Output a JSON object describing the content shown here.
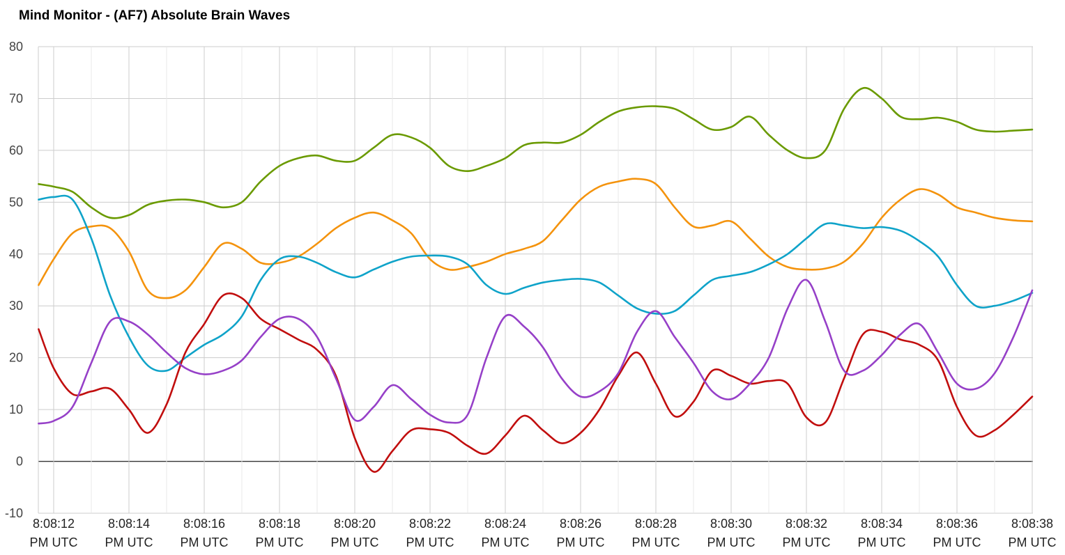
{
  "chart_data": {
    "type": "line",
    "title": "Mind Monitor - (AF7) Absolute Brain Waves",
    "xlabel": "",
    "ylabel": "",
    "ylim": [
      -10,
      80
    ],
    "y_ticks": [
      "80",
      "70",
      "60",
      "50",
      "40",
      "30",
      "20",
      "10",
      "0",
      "-10"
    ],
    "y_tick_values": [
      80,
      70,
      60,
      50,
      40,
      30,
      20,
      10,
      0,
      -10
    ],
    "x_ticks": [
      {
        "time": "8:08:12",
        "suffix": "PM UTC"
      },
      {
        "time": "8:08:14",
        "suffix": "PM UTC"
      },
      {
        "time": "8:08:16",
        "suffix": "PM UTC"
      },
      {
        "time": "8:08:18",
        "suffix": "PM UTC"
      },
      {
        "time": "8:08:20",
        "suffix": "PM UTC"
      },
      {
        "time": "8:08:22",
        "suffix": "PM UTC"
      },
      {
        "time": "8:08:24",
        "suffix": "PM UTC"
      },
      {
        "time": "8:08:26",
        "suffix": "PM UTC"
      },
      {
        "time": "8:08:28",
        "suffix": "PM UTC"
      },
      {
        "time": "8:08:30",
        "suffix": "PM UTC"
      },
      {
        "time": "8:08:32",
        "suffix": "PM UTC"
      },
      {
        "time": "8:08:34",
        "suffix": "PM UTC"
      },
      {
        "time": "8:08:36",
        "suffix": "PM UTC"
      },
      {
        "time": "8:08:38",
        "suffix": "PM UTC"
      }
    ],
    "x_seconds": [
      11.6,
      12,
      12.5,
      13,
      13.5,
      14,
      14.5,
      15,
      15.5,
      16,
      16.5,
      17,
      17.5,
      18,
      18.5,
      19,
      19.5,
      20,
      20.5,
      21,
      21.5,
      22,
      22.5,
      23,
      23.5,
      24,
      24.5,
      25,
      25.5,
      26,
      26.5,
      27,
      27.5,
      28,
      28.5,
      29,
      29.5,
      30,
      30.5,
      31,
      31.5,
      32,
      32.5,
      33,
      33.5,
      34,
      34.5,
      35,
      35.5,
      36,
      36.5,
      37,
      37.5,
      38
    ],
    "grid": true,
    "legend": "none",
    "series": [
      {
        "color": "#6a9a00",
        "values": [
          53.5,
          53,
          52,
          49,
          47,
          47.5,
          49.5,
          50.3,
          50.5,
          50,
          49,
          50,
          54,
          57,
          58.5,
          59,
          58,
          58,
          60.5,
          63,
          62.5,
          60.5,
          57,
          56,
          57,
          58.5,
          61,
          61.5,
          61.5,
          63,
          65.5,
          67.5,
          68.3,
          68.5,
          68,
          66,
          64,
          64.5,
          66.5,
          63,
          60,
          58.5,
          60,
          68,
          72,
          70,
          66.5,
          66,
          66.3,
          65.5,
          64,
          63.6,
          63.8,
          64
        ]
      },
      {
        "color": "#f4930d",
        "values": [
          34,
          39,
          44,
          45.3,
          45,
          40.5,
          33,
          31.5,
          33,
          37.5,
          42,
          41,
          38.3,
          38.3,
          39.5,
          42,
          45,
          47,
          48,
          46.5,
          44,
          39,
          37,
          37.5,
          38.5,
          40,
          41,
          42.5,
          46.5,
          50.5,
          53,
          54,
          54.5,
          53.5,
          49,
          45.3,
          45.5,
          46.3,
          43,
          39.5,
          37.5,
          37,
          37.2,
          38.5,
          42,
          47,
          50.5,
          52.5,
          51.5,
          49,
          48,
          47,
          46.5,
          46.3
        ]
      },
      {
        "color": "#0fa3c9",
        "values": [
          50.5,
          51,
          50.5,
          43,
          32,
          24,
          18.5,
          17.5,
          20,
          22.5,
          24.5,
          28,
          35,
          39,
          39.5,
          38.3,
          36.5,
          35.5,
          37,
          38.5,
          39.5,
          39.7,
          39.5,
          38,
          34,
          32.3,
          33.5,
          34.5,
          35,
          35.2,
          34.5,
          32,
          29.5,
          28.5,
          29,
          32,
          35,
          35.8,
          36.5,
          38,
          40,
          43,
          45.8,
          45.5,
          45,
          45.2,
          44.5,
          42.5,
          39.5,
          34,
          30,
          30,
          31,
          32.5
        ]
      },
      {
        "color": "#c10e0e",
        "values": [
          25.5,
          18,
          13,
          13.5,
          14,
          10,
          5.5,
          11,
          21,
          26.5,
          32,
          31.5,
          27.5,
          25.5,
          23.5,
          21.5,
          16.5,
          4.5,
          -2,
          2,
          6,
          6.2,
          5.5,
          3,
          1.5,
          5,
          8.8,
          6,
          3.5,
          5.5,
          10,
          16.5,
          21,
          15,
          8.7,
          11.5,
          17.5,
          16.5,
          15,
          15.5,
          15,
          8.5,
          7.5,
          16,
          24.5,
          25,
          23.5,
          22.5,
          19.5,
          10.5,
          5,
          6,
          9,
          12.5
        ]
      },
      {
        "color": "#9640c8",
        "values": [
          7.3,
          7.8,
          10.5,
          19,
          27,
          27,
          24.5,
          21,
          18,
          16.8,
          17.5,
          19.5,
          24,
          27.5,
          27.5,
          24,
          16,
          8,
          10.5,
          14.7,
          12,
          9,
          7.5,
          9,
          20,
          28,
          26,
          22,
          16,
          12.5,
          13.5,
          17,
          25,
          29,
          24,
          19,
          13.5,
          12,
          15,
          20,
          29.5,
          35,
          27,
          17.5,
          17.5,
          20.5,
          24.5,
          26.5,
          21,
          15,
          14,
          17,
          24,
          33
        ]
      }
    ]
  }
}
